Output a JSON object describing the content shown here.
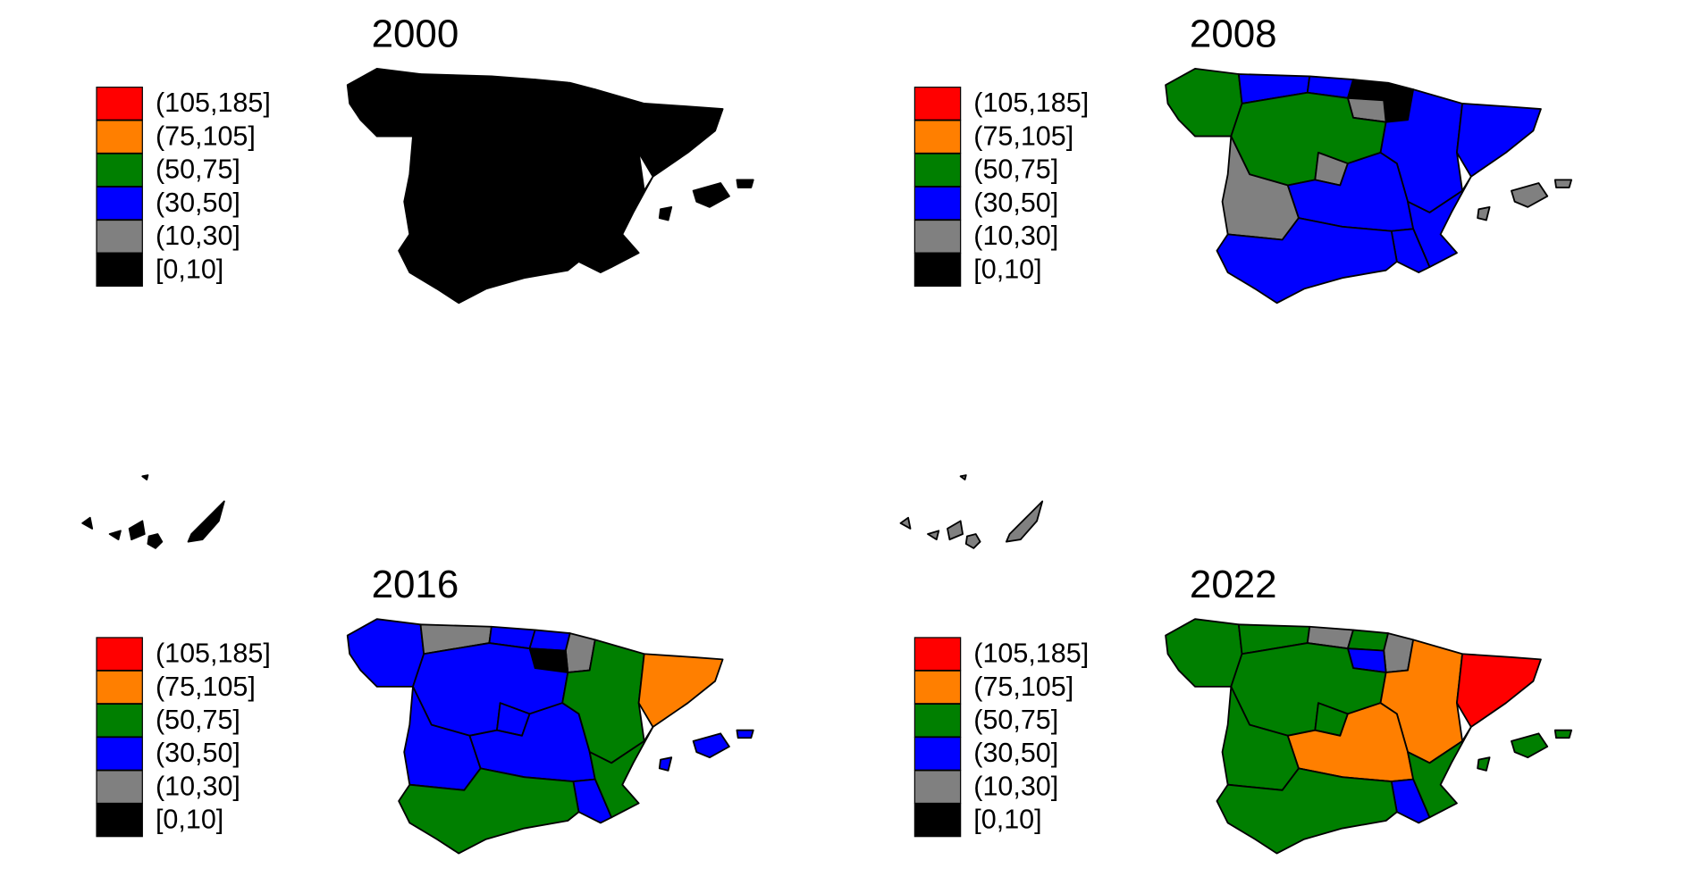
{
  "panels": [
    {
      "title": "2000",
      "legend": [
        {
          "label": "(105,185]",
          "color": "#ff0000"
        },
        {
          "label": "(75,105]",
          "color": "#ff7f00"
        },
        {
          "label": "(50,75]",
          "color": "#007f00"
        },
        {
          "label": "(30,50]",
          "color": "#0000ff"
        },
        {
          "label": "(10,30]",
          "color": "#808080"
        },
        {
          "label": "[0,10]",
          "color": "#000000"
        }
      ],
      "regions": [
        "#000000",
        "#000000",
        "#000000",
        "#000000",
        "#000000",
        "#000000",
        "#000000",
        "#000000",
        "#000000",
        "#000000",
        "#000000",
        "#000000",
        "#000000",
        "#000000",
        "#000000",
        "#000000",
        "#000000"
      ]
    },
    {
      "title": "2008",
      "legend": [
        {
          "label": "(105,185]",
          "color": "#ff0000"
        },
        {
          "label": "(75,105]",
          "color": "#ff7f00"
        },
        {
          "label": "(50,75]",
          "color": "#007f00"
        },
        {
          "label": "(30,50]",
          "color": "#0000ff"
        },
        {
          "label": "(10,30]",
          "color": "#808080"
        },
        {
          "label": "[0,10]",
          "color": "#000000"
        }
      ],
      "regions": [
        "#007f00",
        "#0000ff",
        "#0000ff",
        "#000000",
        "#000000",
        "#808080",
        "#007f00",
        "#808080",
        "#0000ff",
        "#0000ff",
        "#808080",
        "#0000ff",
        "#0000ff",
        "#0000ff",
        "#0000ff",
        "#808080",
        "#808080"
      ]
    },
    {
      "title": "2016",
      "legend": [
        {
          "label": "(105,185]",
          "color": "#ff0000"
        },
        {
          "label": "(75,105]",
          "color": "#ff7f00"
        },
        {
          "label": "(50,75]",
          "color": "#007f00"
        },
        {
          "label": "(30,50]",
          "color": "#0000ff"
        },
        {
          "label": "(10,30]",
          "color": "#808080"
        },
        {
          "label": "[0,10]",
          "color": "#000000"
        }
      ],
      "regions": [
        "#0000ff",
        "#808080",
        "#0000ff",
        "#0000ff",
        "#808080",
        "#000000",
        "#0000ff",
        "#0000ff",
        "#007f00",
        "#ff7f00",
        "#0000ff",
        "#0000ff",
        "#007f00",
        "#0000ff",
        "#007f00",
        "#0000ff"
      ]
    },
    {
      "title": "2022",
      "legend": [
        {
          "label": "(105,185]",
          "color": "#ff0000"
        },
        {
          "label": "(75,105]",
          "color": "#ff7f00"
        },
        {
          "label": "(50,75]",
          "color": "#007f00"
        },
        {
          "label": "(30,50]",
          "color": "#0000ff"
        },
        {
          "label": "(10,30]",
          "color": "#808080"
        },
        {
          "label": "[0,10]",
          "color": "#000000"
        }
      ],
      "regions": [
        "#007f00",
        "#007f00",
        "#808080",
        "#007f00",
        "#808080",
        "#0000ff",
        "#007f00",
        "#007f00",
        "#ff7f00",
        "#ff0000",
        "#007f00",
        "#ff7f00",
        "#007f00",
        "#0000ff",
        "#007f00",
        "#007f00"
      ]
    }
  ]
}
